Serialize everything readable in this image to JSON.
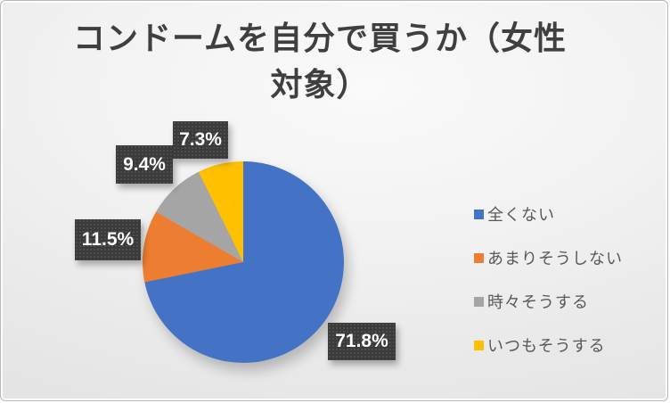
{
  "slide": {
    "title": "コンドームを自分で買うか（女性対象）",
    "title_lines": [
      "コンドームを自分で買うか（女性",
      "対象）"
    ]
  },
  "chart_data": {
    "type": "pie",
    "title": "コンドームを自分で買うか（女性対象）",
    "categories": [
      "全くない",
      "あまりそうしない",
      "時々そうする",
      "いつもそうする"
    ],
    "values": [
      71.8,
      11.5,
      9.4,
      7.3
    ],
    "data_labels": [
      "71.8%",
      "11.5%",
      "9.4%",
      "7.3%"
    ],
    "colors": [
      "#4472C4",
      "#ED7D31",
      "#A5A5A5",
      "#FFC000"
    ],
    "start_angle_deg": 0,
    "direction": "clockwise",
    "legend_position": "right",
    "data_label_style": {
      "background": "#3A3A3A",
      "text_color": "#FFFFFF"
    },
    "title_color": "#3F3F3F",
    "legend_text_color": "#595959"
  }
}
